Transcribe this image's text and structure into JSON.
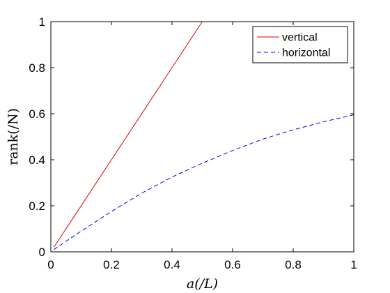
{
  "chart_data": {
    "type": "line",
    "xlabel": "a(/L)",
    "ylabel": "rank(/N)",
    "xlim": [
      0,
      1
    ],
    "ylim": [
      0,
      1
    ],
    "xticks": [
      0,
      0.2,
      0.4,
      0.6,
      0.8,
      1
    ],
    "yticks": [
      0,
      0.2,
      0.4,
      0.6,
      0.8,
      1
    ],
    "xtick_labels": [
      "0",
      "0.2",
      "0.4",
      "0.6",
      "0.8",
      "1"
    ],
    "ytick_labels": [
      "0",
      "0.2",
      "0.4",
      "0.6",
      "0.8",
      "1"
    ],
    "grid": false,
    "legend_position": "top-right",
    "series": [
      {
        "name": "vertical",
        "color": "#dd0000",
        "style": "solid",
        "x": [
          0.01,
          0.5,
          1.0
        ],
        "y": [
          0.02,
          1.0,
          1.0
        ]
      },
      {
        "name": "horizontal",
        "color": "#0000dd",
        "style": "dashed",
        "x": [
          0.01,
          0.1,
          0.2,
          0.3,
          0.4,
          0.5,
          0.6,
          0.7,
          0.8,
          0.9,
          1.0
        ],
        "y": [
          0.01,
          0.09,
          0.175,
          0.255,
          0.325,
          0.385,
          0.44,
          0.49,
          0.53,
          0.565,
          0.595
        ]
      }
    ]
  }
}
